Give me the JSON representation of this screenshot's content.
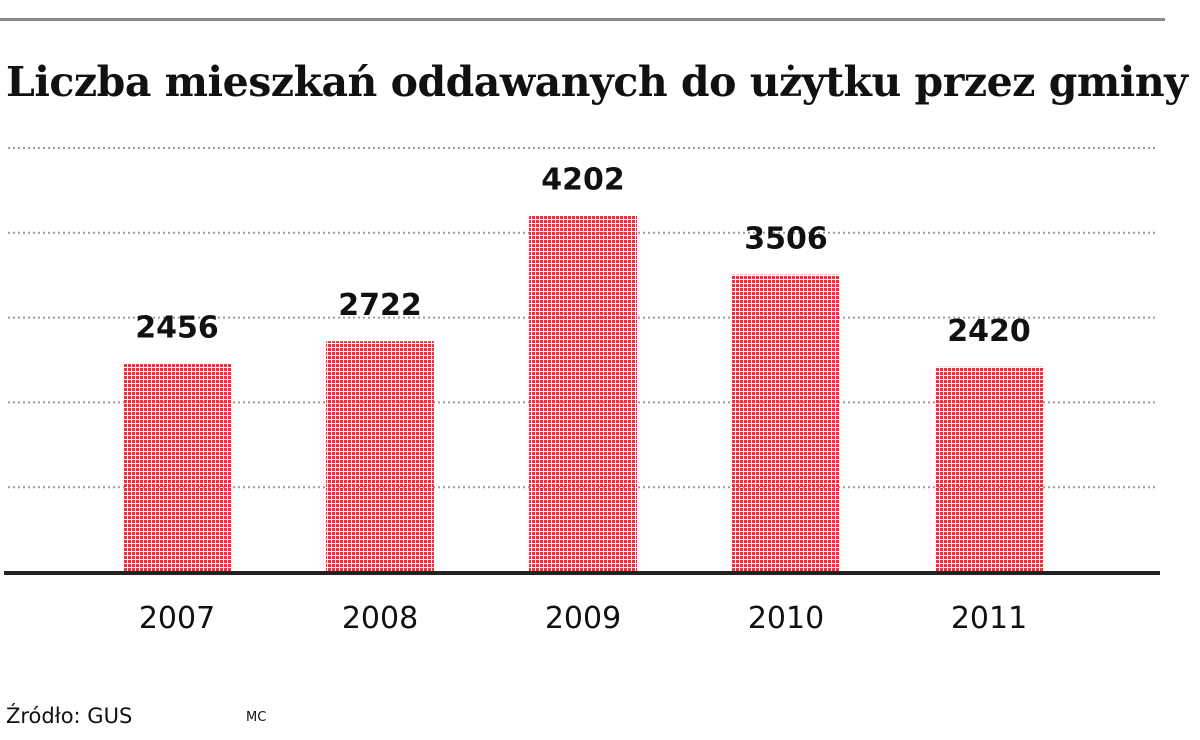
{
  "title": "Liczba mieszkań oddawanych do użytku przez gminy",
  "source": "Źródło: GUS",
  "credit": "MC",
  "colors": {
    "bar": "#e8323c",
    "grid": "#9a9a9a",
    "axis": "#222222",
    "text": "#111111"
  },
  "chart_data": {
    "type": "bar",
    "categories": [
      "2007",
      "2008",
      "2009",
      "2010",
      "2011"
    ],
    "values": [
      2456,
      2722,
      4202,
      3506,
      2420
    ],
    "data_labels": [
      "2456",
      "2722",
      "4202",
      "3506",
      "2420"
    ],
    "title": "Liczba mieszkań oddawanych do użytku przez gminy",
    "xlabel": "",
    "ylabel": "",
    "ylim": [
      0,
      5000
    ],
    "grid_step": 1000,
    "grid": true,
    "legend": "none"
  }
}
